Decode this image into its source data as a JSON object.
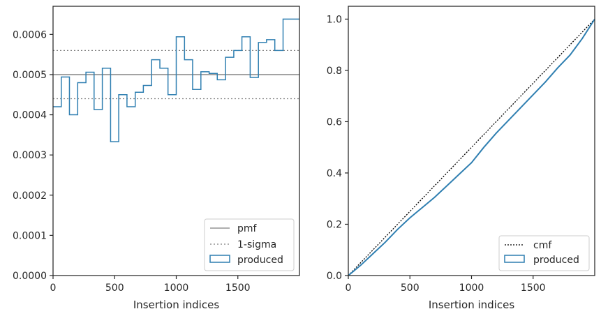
{
  "chart_data": [
    {
      "type": "line",
      "xlabel": "Insertion indices",
      "ylabel": "",
      "xlim": [
        0,
        2000
      ],
      "ylim": [
        0,
        0.00067
      ],
      "x_ticks": [
        0,
        500,
        1000,
        1500
      ],
      "x_tick_labels": [
        "0",
        "500",
        "1000",
        "1500"
      ],
      "y_ticks": [
        0,
        0.0001,
        0.0002,
        0.0003,
        0.0004,
        0.0005,
        0.0006
      ],
      "y_tick_labels": [
        "0.0000",
        "0.0001",
        "0.0002",
        "0.0003",
        "0.0004",
        "0.0005",
        "0.0006"
      ],
      "pmf": 0.0005,
      "sigma_lower": 0.00044,
      "sigma_upper": 0.00056,
      "produced": {
        "bin_edges": [
          0,
          67,
          133,
          200,
          267,
          333,
          400,
          467,
          533,
          600,
          667,
          733,
          800,
          867,
          933,
          1000,
          1067,
          1133,
          1200,
          1267,
          1333,
          1400,
          1467,
          1533,
          1600,
          1667,
          1733,
          1800,
          1867,
          1933,
          2000
        ],
        "values": [
          0.00042,
          0.000494,
          0.0004,
          0.00048,
          0.000506,
          0.000413,
          0.000516,
          0.000333,
          0.00045,
          0.00042,
          0.000456,
          0.000473,
          0.000537,
          0.000516,
          0.00045,
          0.000594,
          0.000537,
          0.000463,
          0.000507,
          0.000503,
          0.000487,
          0.000543,
          0.00056,
          0.000594,
          0.000493,
          0.00058,
          0.000587,
          0.00056,
          0.000638,
          0.000638
        ]
      },
      "colors": {
        "produced": "#2f7fb1",
        "pmf": "#7f7f7f",
        "sigma": "#7f7f7f"
      },
      "legend": {
        "placement": "lower-right",
        "entries": [
          "pmf",
          "1-sigma",
          "produced"
        ]
      },
      "grid": false
    },
    {
      "type": "line",
      "xlabel": "Insertion indices",
      "ylabel": "",
      "xlim": [
        0,
        2000
      ],
      "ylim": [
        0,
        1.05
      ],
      "x_ticks": [
        0,
        500,
        1000,
        1500
      ],
      "x_tick_labels": [
        "0",
        "500",
        "1000",
        "1500"
      ],
      "y_ticks": [
        0,
        0.2,
        0.4,
        0.6,
        0.8,
        1.0
      ],
      "y_tick_labels": [
        "0.0",
        "0.2",
        "0.4",
        "0.6",
        "0.8",
        "1.0"
      ],
      "cmf": {
        "x": [
          0,
          2000
        ],
        "y": [
          0,
          1.0
        ]
      },
      "produced": {
        "x": [
          0,
          100,
          200,
          300,
          400,
          500,
          600,
          700,
          800,
          900,
          1000,
          1100,
          1200,
          1300,
          1400,
          1500,
          1600,
          1700,
          1800,
          1900,
          2000
        ],
        "y": [
          0,
          0.04,
          0.085,
          0.13,
          0.18,
          0.225,
          0.265,
          0.305,
          0.35,
          0.395,
          0.44,
          0.5,
          0.555,
          0.605,
          0.655,
          0.705,
          0.755,
          0.81,
          0.86,
          0.925,
          1.0
        ]
      },
      "colors": {
        "produced": "#2f7fb1",
        "cmf": "#000000"
      },
      "legend": {
        "placement": "lower-right",
        "entries": [
          "cmf",
          "produced"
        ]
      },
      "grid": false
    }
  ]
}
